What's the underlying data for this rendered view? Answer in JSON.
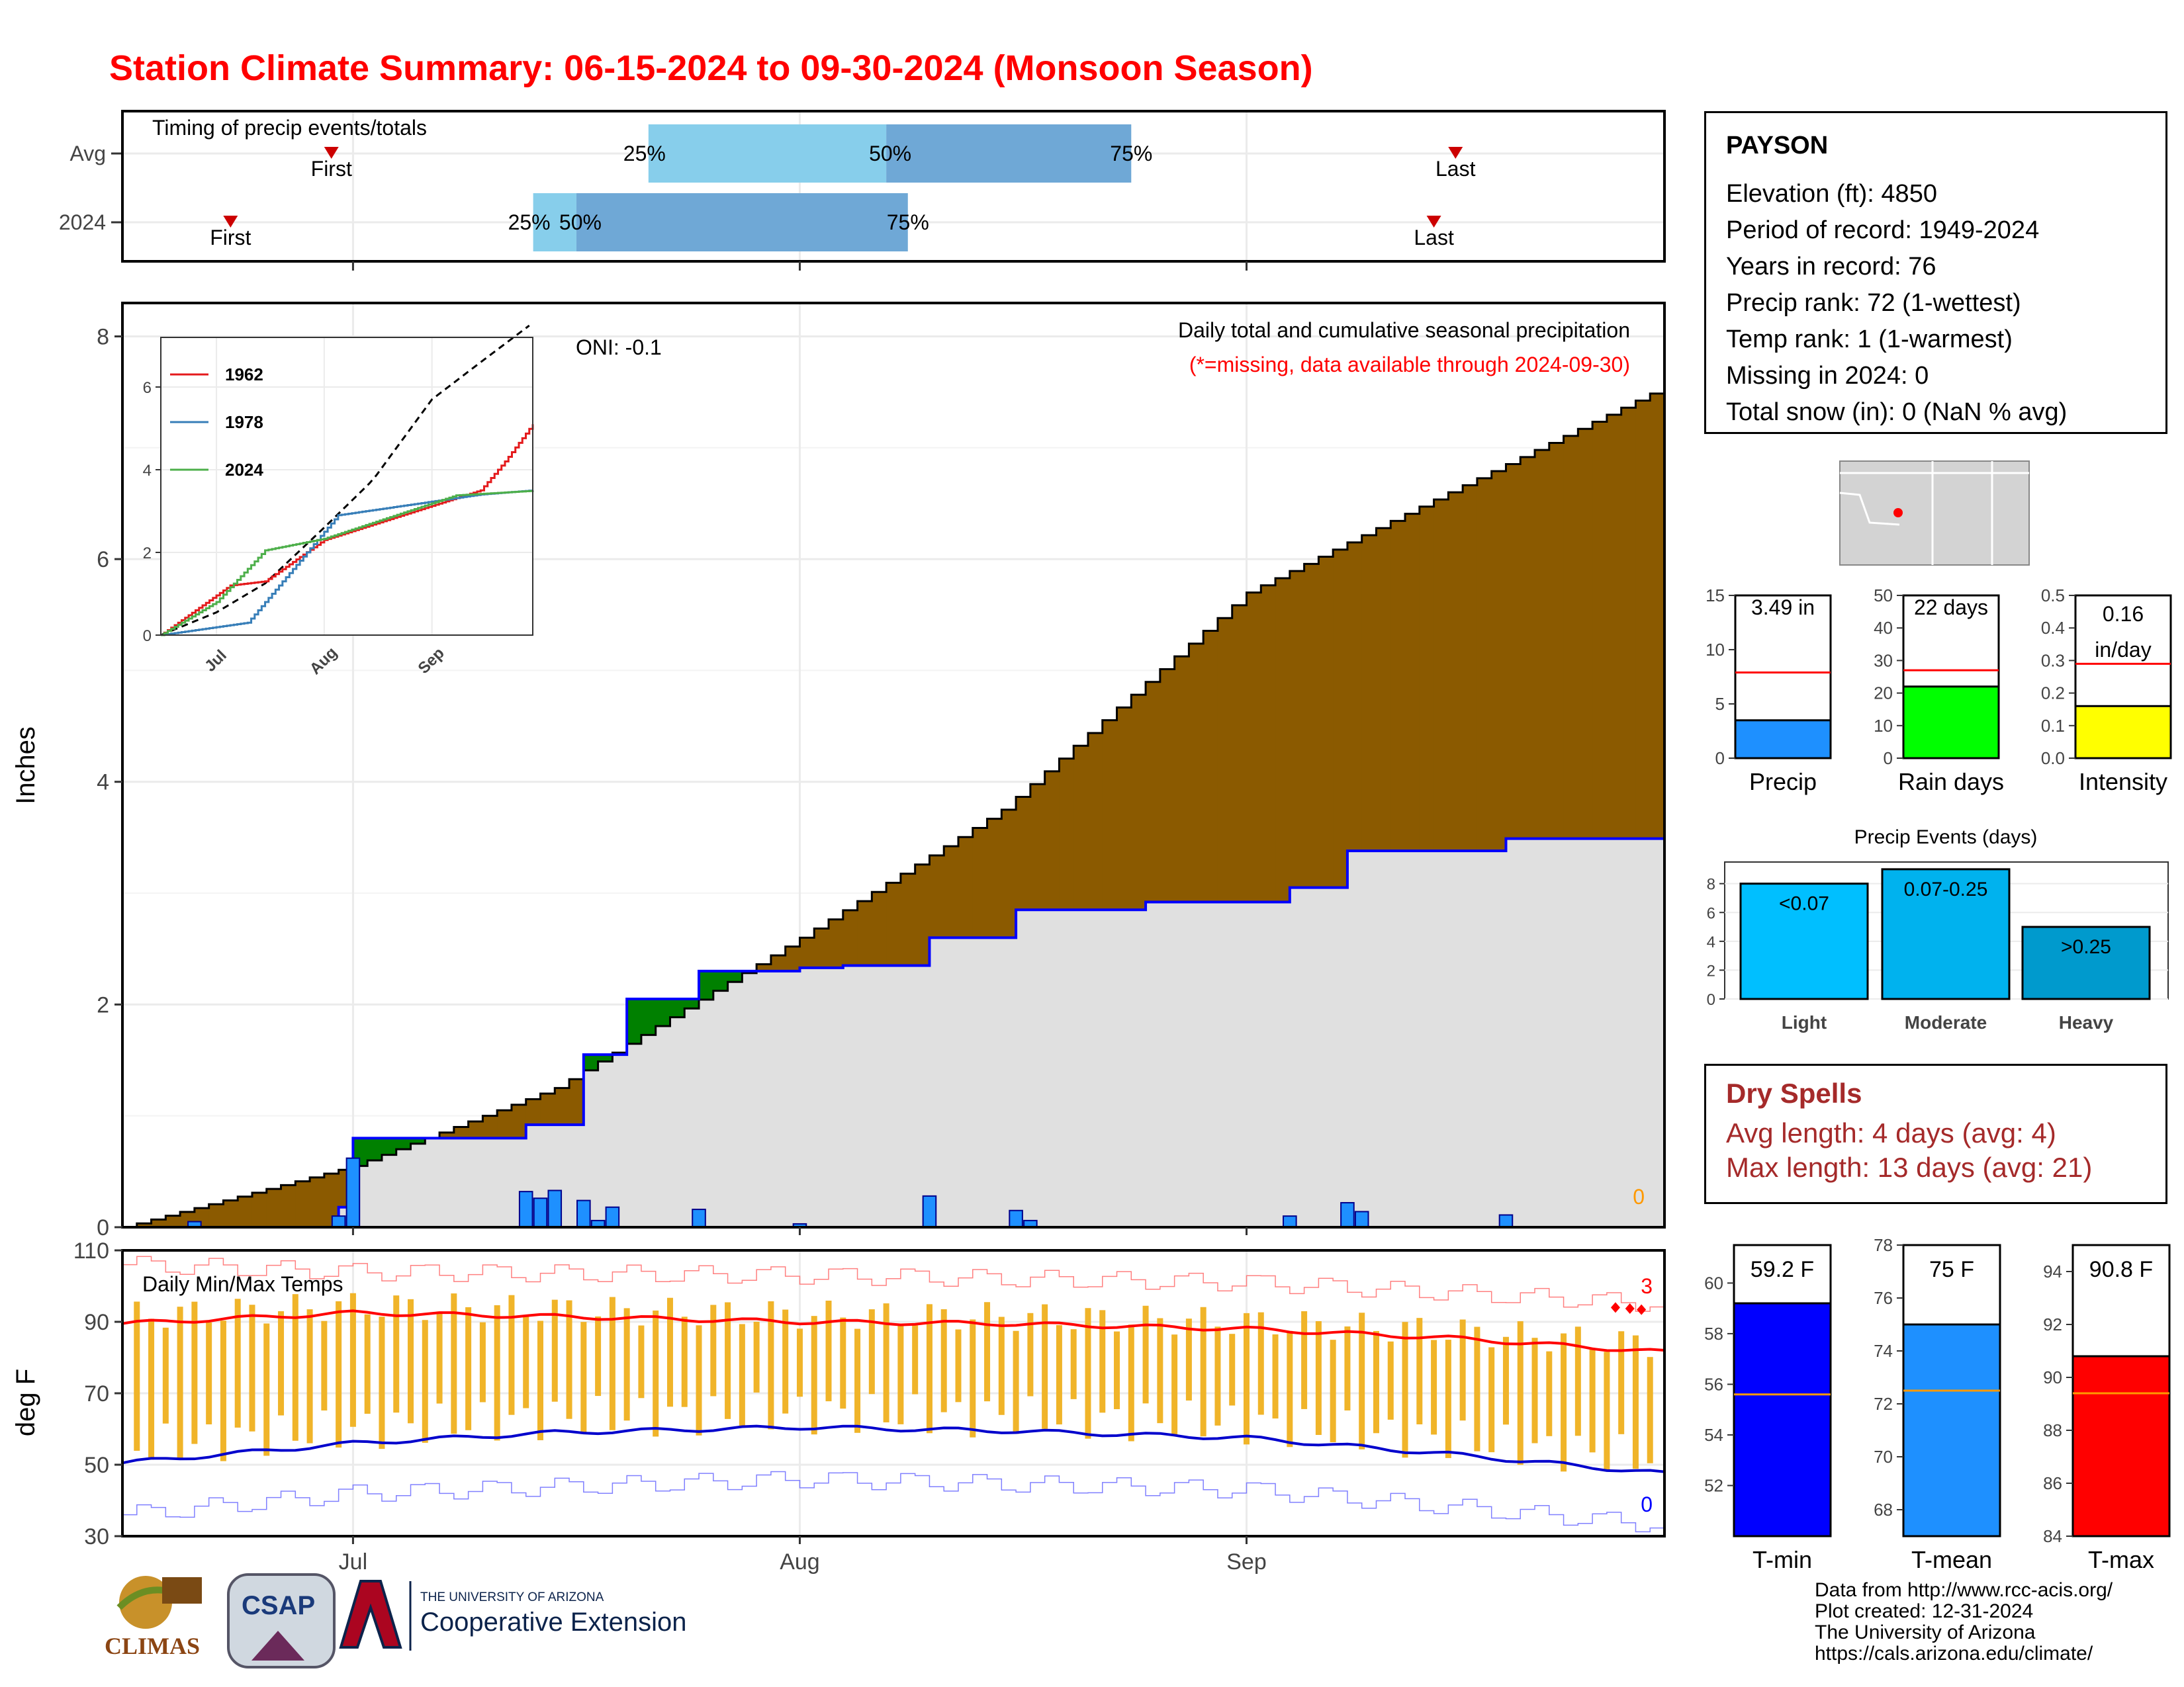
{
  "title": "Station Climate Summary: 06-15-2024 to 09-30-2024 (Monsoon Season)",
  "colors": {
    "title": "#ff0000",
    "precip_surplus_fill": "#8b5a00",
    "precip_deficit_fill": "#008000",
    "cumulative_2024_fill": "#e0e0e0",
    "cumulative_2024_line": "#0000ff",
    "daily_precip_bar": "#1e90ff",
    "temp_range_bar": "#f0b429",
    "temp_max_avg": "#ff0000",
    "temp_min_avg": "#0000cc",
    "timing_25_50": "#87ceeb",
    "timing_50_75": "#6fa8d6",
    "dry_spell_text": "#a52a2a"
  },
  "timing_panel": {
    "label": "Timing of precip events/totals",
    "rows": [
      {
        "name": "Avg",
        "first": "First",
        "last": "Last",
        "p25": "25%",
        "p50": "50%",
        "p75": "75%"
      },
      {
        "name": "2024",
        "first": "First",
        "last": "Last",
        "p25": "25%",
        "p50": "50%",
        "p75": "75%"
      }
    ]
  },
  "precip_panel": {
    "ylabel": "Inches",
    "yticks": [
      "0",
      "2",
      "4",
      "6",
      "8"
    ],
    "xticks": [
      "Jul",
      "Aug",
      "Sep"
    ],
    "oni": "ONI: -0.1",
    "caption": "Daily total and cumulative seasonal precipitation",
    "missing_note": "(*=missing, data available through 2024-09-30)",
    "missing_count": "0",
    "inset": {
      "yticks": [
        "0",
        "2",
        "4",
        "6"
      ],
      "xticks": [
        "Jul",
        "Aug",
        "Sep"
      ],
      "legend": [
        "1962",
        "1978",
        "2024"
      ]
    }
  },
  "temp_panel": {
    "ylabel": "deg F",
    "label": "Daily Min/Max Temps",
    "yticks": [
      "30",
      "50",
      "70",
      "90",
      "110"
    ],
    "xticks": [
      "Jul",
      "Aug",
      "Sep"
    ],
    "record_high_count": "3",
    "record_low_count": "0"
  },
  "station_info": {
    "name": "PAYSON",
    "lines": [
      "Elevation (ft): 4850",
      "Period of record: 1949-2024",
      "Years in record: 76",
      "Precip rank: 72 (1-wettest)",
      "Temp rank: 1 (1-warmest)",
      "Missing in 2024: 0",
      "Total snow (in): 0 (NaN % avg)"
    ]
  },
  "summary_bars": [
    {
      "label": "Precip",
      "value_text": "3.49 in",
      "value": 3.49,
      "avg": 7.9,
      "ymax": 15,
      "yticks": [
        "0",
        "5",
        "10",
        "15"
      ],
      "color": "#1e90ff"
    },
    {
      "label": "Rain days",
      "value_text": "22 days",
      "value": 22,
      "avg": 27,
      "ymax": 50,
      "yticks": [
        "0",
        "10",
        "20",
        "30",
        "40",
        "50"
      ],
      "color": "#00ff00"
    },
    {
      "label": "Intensity",
      "value_text": "0.16",
      "value_text2": "in/day",
      "value": 0.16,
      "avg": 0.29,
      "ymax": 0.5,
      "yticks": [
        "0.0",
        "0.1",
        "0.2",
        "0.3",
        "0.4",
        "0.5"
      ],
      "color": "#ffff00"
    }
  ],
  "precip_events": {
    "title": "Precip Events (days)",
    "yticks": [
      "0",
      "2",
      "4",
      "6",
      "8"
    ],
    "bars": [
      {
        "label": "Light",
        "bar_text": "<0.07",
        "value": 8,
        "color": "#00bfff"
      },
      {
        "label": "Moderate",
        "bar_text": "0.07-0.25",
        "value": 9,
        "color": "#00b2ee"
      },
      {
        "label": "Heavy",
        "bar_text": ">0.25",
        "value": 5,
        "color": "#009acd"
      }
    ]
  },
  "dry_spells": {
    "title": "Dry Spells",
    "avg_line": "Avg length: 4 days (avg: 4)",
    "max_line": "Max length: 13 days (avg: 21)"
  },
  "temp_bars": [
    {
      "label": "T-min",
      "value_text": "59.2 F",
      "value": 59.2,
      "avg": 55.6,
      "ymin": 50,
      "ymax": 61.5,
      "yticks": [
        "52",
        "54",
        "56",
        "58",
        "60"
      ],
      "tickvals": [
        52,
        54,
        56,
        58,
        60
      ],
      "color": "#0000ff"
    },
    {
      "label": "T-mean",
      "value_text": "75 F",
      "value": 75.0,
      "avg": 72.5,
      "ymin": 67,
      "ymax": 78,
      "yticks": [
        "68",
        "70",
        "72",
        "74",
        "76",
        "78"
      ],
      "tickvals": [
        68,
        70,
        72,
        74,
        76,
        78
      ],
      "color": "#1e90ff"
    },
    {
      "label": "T-max",
      "value_text": "90.8 F",
      "value": 90.8,
      "avg": 89.4,
      "ymin": 84,
      "ymax": 95,
      "yticks": [
        "84",
        "86",
        "88",
        "90",
        "92",
        "94"
      ],
      "tickvals": [
        84,
        86,
        88,
        90,
        92,
        94
      ],
      "color": "#ff0000"
    }
  ],
  "logos": {
    "climas": "CLIMAS",
    "csap": "CSAP",
    "ua_line1": "THE UNIVERSITY OF ARIZONA",
    "ua_line2": "Cooperative Extension"
  },
  "footer": [
    "Data from http://www.rcc-acis.org/",
    "Plot created: 12-31-2024",
    "The University of Arizona",
    "https://cals.arizona.edu/climate/"
  ],
  "chart_data": {
    "type": "area",
    "title": "Station Climate Summary: 06-15-2024 to 09-30-2024 (Monsoon Season)",
    "x_range": [
      "2024-06-15",
      "2024-09-30"
    ],
    "ylabel": "Inches",
    "ylim": [
      0,
      8.3
    ],
    "series": [
      {
        "name": "Avg cumulative precip",
        "x": [
          "2024-06-15",
          "2024-07-01",
          "2024-07-15",
          "2024-08-01",
          "2024-08-15",
          "2024-09-01",
          "2024-09-15",
          "2024-09-30"
        ],
        "values": [
          0.0,
          0.55,
          1.25,
          2.6,
          3.75,
          5.7,
          6.6,
          7.55
        ]
      },
      {
        "name": "2024 cumulative precip",
        "x": [
          "2024-06-15",
          "2024-06-30",
          "2024-07-01",
          "2024-07-13",
          "2024-07-17",
          "2024-07-20",
          "2024-07-25",
          "2024-08-01",
          "2024-08-04",
          "2024-08-10",
          "2024-08-16",
          "2024-08-25",
          "2024-09-04",
          "2024-09-08",
          "2024-09-19",
          "2024-09-30"
        ],
        "values": [
          0.0,
          0.18,
          0.8,
          0.92,
          1.55,
          2.05,
          2.3,
          2.33,
          2.35,
          2.6,
          2.85,
          2.92,
          3.05,
          3.38,
          3.49,
          3.49
        ]
      },
      {
        "name": "2024 daily precip",
        "x": [
          "2024-06-20",
          "2024-06-30",
          "2024-07-01",
          "2024-07-13",
          "2024-07-14",
          "2024-07-15",
          "2024-07-17",
          "2024-07-18",
          "2024-07-19",
          "2024-07-25",
          "2024-08-01",
          "2024-08-10",
          "2024-08-16",
          "2024-08-17",
          "2024-09-04",
          "2024-09-08",
          "2024-09-09",
          "2024-09-19"
        ],
        "values": [
          0.05,
          0.1,
          0.62,
          0.32,
          0.26,
          0.33,
          0.24,
          0.06,
          0.18,
          0.16,
          0.03,
          0.28,
          0.15,
          0.06,
          0.1,
          0.22,
          0.14,
          0.11
        ]
      }
    ],
    "inset_series": [
      {
        "name": "1962",
        "x": [
          "2024-06-15",
          "2024-07-05",
          "2024-07-15",
          "2024-08-01",
          "2024-09-15",
          "2024-09-22",
          "2024-09-30"
        ],
        "values": [
          0.0,
          1.2,
          1.3,
          2.3,
          3.5,
          4.2,
          5.1
        ]
      },
      {
        "name": "1978",
        "x": [
          "2024-06-15",
          "2024-07-10",
          "2024-07-25",
          "2024-08-05",
          "2024-09-15",
          "2024-09-30"
        ],
        "values": [
          0.0,
          0.3,
          1.8,
          2.9,
          3.4,
          3.5
        ]
      },
      {
        "name": "2024",
        "x": [
          "2024-06-15",
          "2024-07-01",
          "2024-07-15",
          "2024-08-01",
          "2024-09-08",
          "2024-09-30"
        ],
        "values": [
          0.0,
          0.8,
          2.05,
          2.33,
          3.38,
          3.49
        ]
      }
    ],
    "temperature": {
      "ylabel": "deg F",
      "ylim": [
        30,
        110
      ],
      "series": [
        {
          "name": "Avg daily max",
          "x": [
            "2024-06-15",
            "2024-07-01",
            "2024-07-15",
            "2024-08-01",
            "2024-08-15",
            "2024-09-01",
            "2024-09-15",
            "2024-09-30"
          ],
          "values": [
            89.5,
            92.5,
            91.5,
            90,
            89.5,
            88,
            85.5,
            81.5
          ]
        },
        {
          "name": "Avg daily min",
          "x": [
            "2024-06-15",
            "2024-07-01",
            "2024-07-15",
            "2024-08-01",
            "2024-08-15",
            "2024-09-01",
            "2024-09-15",
            "2024-09-30"
          ],
          "values": [
            50.5,
            56,
            59,
            60.5,
            59.5,
            57.5,
            53,
            47.5
          ]
        },
        {
          "name": "Record max",
          "x": [
            "2024-06-15",
            "2024-07-01",
            "2024-08-01",
            "2024-09-01",
            "2024-09-30"
          ],
          "values": [
            106,
            104,
            103,
            101,
            95
          ]
        },
        {
          "name": "Record min",
          "x": [
            "2024-06-15",
            "2024-07-01",
            "2024-08-01",
            "2024-09-01",
            "2024-09-30"
          ],
          "values": [
            36,
            42,
            46,
            43,
            33
          ]
        }
      ]
    }
  }
}
